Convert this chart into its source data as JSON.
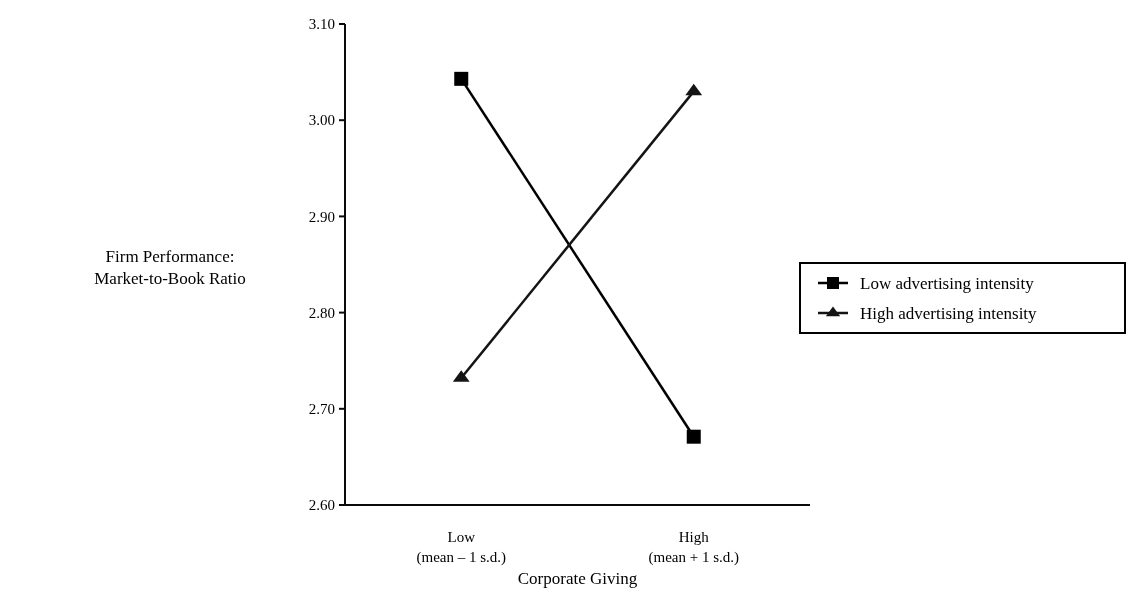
{
  "chart_data": {
    "type": "line",
    "xlabel": "Corporate Giving",
    "ylabel": "Firm Performance:\nMarket-to-Book Ratio",
    "categories": [
      "Low\n(mean – 1 s.d.)",
      "High\n(mean + 1 s.d.)"
    ],
    "series": [
      {
        "name": "Low advertising intensity",
        "color": "#000000",
        "marker": "square",
        "values": [
          3.043,
          2.671
        ]
      },
      {
        "name": "High advertising intensity",
        "color": "#141414",
        "marker": "triangle",
        "values": [
          2.732,
          3.03
        ]
      }
    ],
    "ylim": [
      2.6,
      3.1
    ],
    "yticks": [
      {
        "value": 2.6,
        "label": "2.60"
      },
      {
        "value": 2.7,
        "label": "2.70"
      },
      {
        "value": 2.8,
        "label": "2.80"
      },
      {
        "value": 2.9,
        "label": "2.90"
      },
      {
        "value": 3.0,
        "label": "3.00"
      },
      {
        "value": 3.1,
        "label": "3.10"
      }
    ],
    "grid": false,
    "legend": "right",
    "line_style": "solid"
  }
}
